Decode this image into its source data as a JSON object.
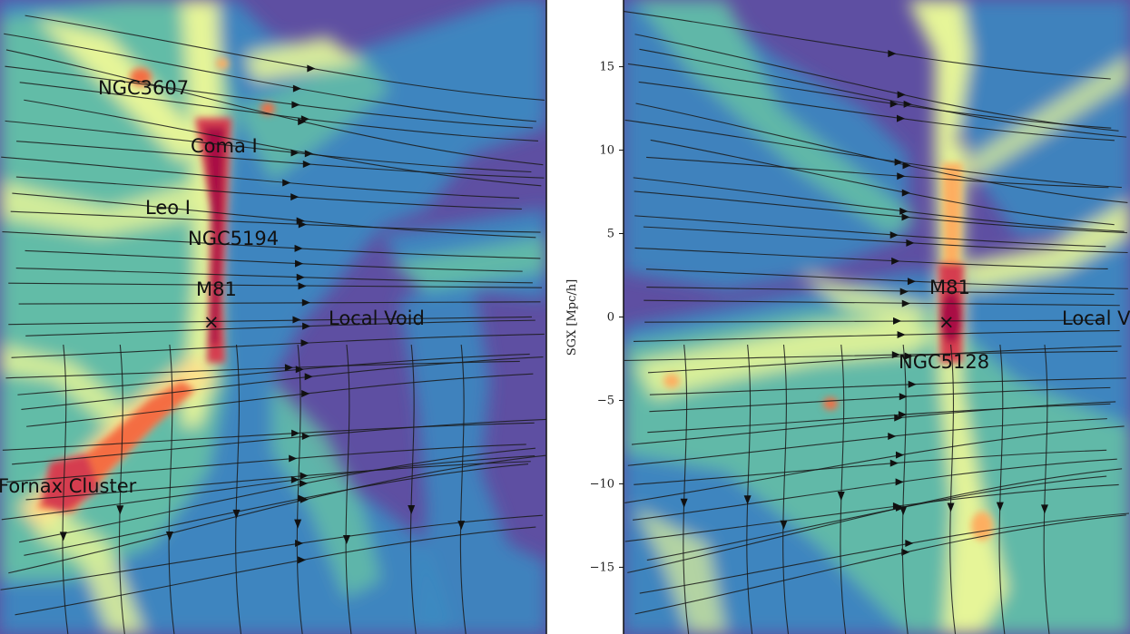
{
  "chart_data": [
    {
      "type": "heatmap",
      "panel": "left",
      "colormap": "Spectral_r",
      "labels": [
        {
          "text": "NGC3607"
        },
        {
          "text": "Coma I"
        },
        {
          "text": "Leo I"
        },
        {
          "text": "NGC5194"
        },
        {
          "text": "M81"
        },
        {
          "text": "Local Void"
        },
        {
          "text": "Fornax Cluster"
        }
      ],
      "markers": [
        {
          "symbol": "×",
          "name": "M81"
        }
      ]
    },
    {
      "type": "heatmap",
      "panel": "right",
      "colormap": "Spectral_r",
      "ylabel": "SGX [Mpc/h]",
      "yticks": [
        15,
        10,
        5,
        0,
        -5,
        -10,
        -15
      ],
      "ytick_labels": [
        "15",
        "10",
        "5",
        "0",
        "−5",
        "−10",
        "−15"
      ],
      "ylim": [
        -19,
        19
      ],
      "labels": [
        {
          "text": "M81"
        },
        {
          "text": "NGC5128"
        },
        {
          "text": "Local V"
        }
      ],
      "markers": [
        {
          "symbol": "×",
          "name": "M81"
        }
      ]
    }
  ]
}
